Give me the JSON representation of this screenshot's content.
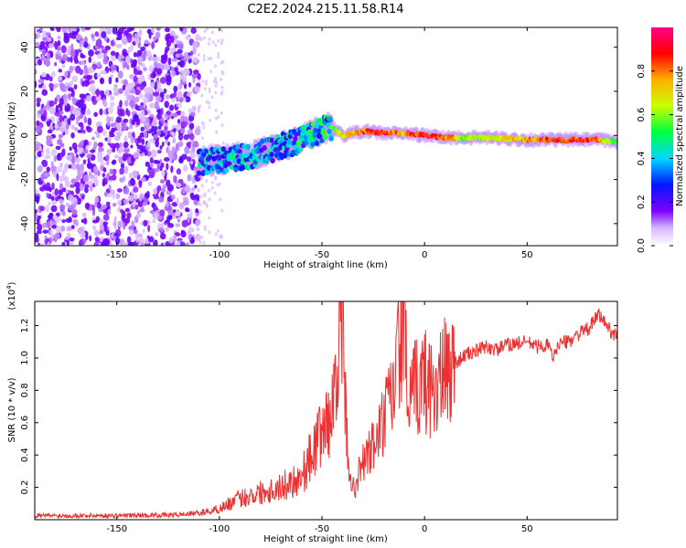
{
  "title": "C2E2.2024.215.11.58.R14",
  "chart_data": [
    {
      "type": "heatmap",
      "name": "spectrogram",
      "xlabel": "Height of straight line (km)",
      "ylabel": "Frequency (Hz)",
      "xlim": [
        -190,
        94
      ],
      "ylim": [
        -50,
        49
      ],
      "xticks": [
        -150,
        -100,
        -50,
        0,
        50
      ],
      "xtick_labels": [
        "-150",
        "-100",
        "-50",
        "0",
        "50"
      ],
      "yticks": [
        -40,
        -20,
        0,
        20,
        40
      ],
      "ytick_labels": [
        "-40",
        "-20",
        "0",
        "20",
        "40"
      ],
      "noise_region_x": [
        -190,
        -110
      ],
      "signal_track": [
        {
          "x": -110,
          "freq": -12
        },
        {
          "x": -100,
          "freq": -11
        },
        {
          "x": -90,
          "freq": -10
        },
        {
          "x": -80,
          "freq": -8
        },
        {
          "x": -70,
          "freq": -5
        },
        {
          "x": -60,
          "freq": -2
        },
        {
          "x": -50,
          "freq": 3
        },
        {
          "x": -45,
          "freq": 4
        },
        {
          "x": -40,
          "freq": 0
        },
        {
          "x": -30,
          "freq": 2
        },
        {
          "x": -20,
          "freq": 1
        },
        {
          "x": -10,
          "freq": 1
        },
        {
          "x": 0,
          "freq": 0
        },
        {
          "x": 10,
          "freq": -1
        },
        {
          "x": 30,
          "freq": -1
        },
        {
          "x": 50,
          "freq": -2
        },
        {
          "x": 70,
          "freq": -2
        },
        {
          "x": 85,
          "freq": -2
        },
        {
          "x": 94,
          "freq": -3
        }
      ],
      "signal_amplitude": [
        {
          "x": -110,
          "amp": 0.25
        },
        {
          "x": -60,
          "amp": 0.32
        },
        {
          "x": -50,
          "amp": 0.38
        },
        {
          "x": -40,
          "amp": 0.7
        },
        {
          "x": -30,
          "amp": 0.85
        },
        {
          "x": -20,
          "amp": 0.9
        },
        {
          "x": -10,
          "amp": 0.75
        },
        {
          "x": 0,
          "amp": 0.95
        },
        {
          "x": 10,
          "amp": 0.85
        },
        {
          "x": 20,
          "amp": 0.6
        },
        {
          "x": 40,
          "amp": 0.7
        },
        {
          "x": 60,
          "amp": 0.85
        },
        {
          "x": 80,
          "amp": 0.9
        },
        {
          "x": 94,
          "amp": 0.55
        }
      ]
    },
    {
      "type": "colorbar",
      "name": "colorbar",
      "label": "Normalized spectral amplitude",
      "range": [
        0,
        1
      ],
      "ticks": [
        0.0,
        0.2,
        0.4,
        0.6,
        0.8
      ],
      "tick_labels": [
        "0.0",
        "0.2",
        "0.4",
        "0.6",
        "0.8"
      ],
      "colors": [
        "#ffffff",
        "#7b00ff",
        "#0018ff",
        "#00d8ff",
        "#00ff40",
        "#c8ff00",
        "#ffb000",
        "#ff0000",
        "#ff008a"
      ]
    },
    {
      "type": "line",
      "name": "snr",
      "xlabel": "Height of straight line (km)",
      "ylabel": "SNR (10 * v/v)",
      "scale_label": "(x10",
      "scale_exp": "4",
      "scale_close": ")",
      "xlim": [
        -190,
        94
      ],
      "ylim": [
        0,
        13500
      ],
      "xticks": [
        -150,
        -100,
        -50,
        0,
        50
      ],
      "xtick_labels": [
        "-150",
        "-100",
        "-50",
        "0",
        "50"
      ],
      "yticks": [
        2000,
        4000,
        6000,
        8000,
        10000,
        12000
      ],
      "ytick_labels": [
        "0.2",
        "0.4",
        "0.6",
        "0.8",
        "1.0",
        "1.2"
      ],
      "line_color": "#ee3030",
      "x": [
        -190,
        -150,
        -120,
        -105,
        -100,
        -90,
        -80,
        -70,
        -60,
        -55,
        -50,
        -45,
        -42,
        -40,
        -38,
        -35,
        -30,
        -25,
        -20,
        -15,
        -12,
        -10,
        -8,
        -5,
        0,
        5,
        10,
        15,
        20,
        25,
        30,
        35,
        40,
        45,
        50,
        55,
        60,
        63,
        65,
        70,
        75,
        80,
        85,
        90,
        94
      ],
      "y": [
        250,
        250,
        300,
        500,
        700,
        1300,
        1700,
        2000,
        2700,
        4000,
        5500,
        6500,
        11500,
        12000,
        5000,
        1800,
        3500,
        4500,
        6000,
        8000,
        11000,
        13300,
        6500,
        8000,
        8700,
        8000,
        9000,
        9700,
        10200,
        10400,
        10700,
        10500,
        10800,
        10900,
        11000,
        10700,
        10800,
        10000,
        10900,
        11000,
        11500,
        11800,
        12700,
        11800,
        11300
      ]
    }
  ]
}
